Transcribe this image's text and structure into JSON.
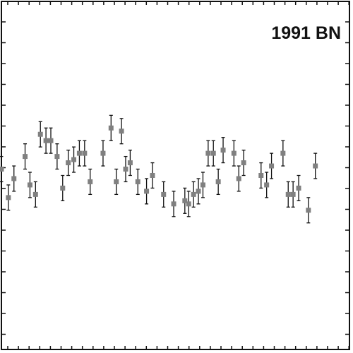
{
  "chart_data": {
    "type": "scatter",
    "title": "1991 BN",
    "xlabel": "",
    "ylabel": "",
    "xlim": [
      0,
      100
    ],
    "ylim": [
      -0.05,
      1.05
    ],
    "grid": false,
    "legend": "none",
    "colors": {
      "marker": "#808080",
      "errorbar": "#111111",
      "frame": "#111111",
      "background": "#ffffff"
    },
    "series": [
      {
        "x": [
          0.0,
          2.0,
          3.6,
          6.8,
          8.2,
          9.8,
          11.2,
          12.8,
          14.2,
          16.0,
          17.6,
          19.2,
          20.8,
          22.4,
          23.9,
          25.5,
          29.2,
          31.5,
          33.0,
          34.5,
          35.7,
          37.0,
          39.2,
          41.7,
          43.4,
          46.6,
          49.5,
          52.7,
          53.8,
          55.2,
          56.6,
          57.9,
          59.4,
          60.9,
          62.3,
          63.7,
          66.8,
          68.2,
          69.6,
          74.6,
          76.2,
          77.6,
          80.9,
          82.4,
          83.8,
          85.4,
          88.2,
          90.2
        ],
        "y": [
          0.52,
          0.43,
          0.49,
          0.56,
          0.47,
          0.44,
          0.63,
          0.61,
          0.61,
          0.56,
          0.46,
          0.54,
          0.55,
          0.57,
          0.57,
          0.48,
          0.57,
          0.65,
          0.48,
          0.64,
          0.52,
          0.54,
          0.48,
          0.45,
          0.5,
          0.44,
          0.41,
          0.42,
          0.41,
          0.44,
          0.45,
          0.47,
          0.57,
          0.57,
          0.48,
          0.58,
          0.57,
          0.49,
          0.54,
          0.5,
          0.47,
          0.53,
          0.57,
          0.44,
          0.44,
          0.46,
          0.39,
          0.53
        ],
        "yerr": 0.04
      }
    ]
  }
}
